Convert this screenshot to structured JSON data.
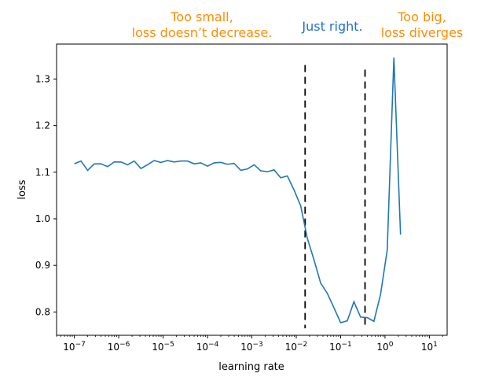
{
  "colors": {
    "series": "#1f77b4",
    "annotation_orange": "#ff8c00",
    "annotation_blue": "#1e6fd9",
    "marker_line": "#000000"
  },
  "annotations": {
    "small_line1": "Too small,",
    "small_line2": "loss doesn’t decrease.",
    "right": "Just right.",
    "big_line1": "Too big,",
    "big_line2": "loss diverges"
  },
  "chart_data": {
    "type": "line",
    "xlabel": "learning rate",
    "ylabel": "loss",
    "xscale": "log",
    "xlim_log10": [
      -7.4,
      1.4
    ],
    "ylim": [
      0.75,
      1.375
    ],
    "x_ticks": [
      {
        "label": "10",
        "exp": "−7",
        "value": -7
      },
      {
        "label": "10",
        "exp": "−6",
        "value": -6
      },
      {
        "label": "10",
        "exp": "−5",
        "value": -5
      },
      {
        "label": "10",
        "exp": "−4",
        "value": -4
      },
      {
        "label": "10",
        "exp": "−3",
        "value": -3
      },
      {
        "label": "10",
        "exp": "−2",
        "value": -2
      },
      {
        "label": "10",
        "exp": "−1",
        "value": -1
      },
      {
        "label": "10",
        "exp": "0",
        "value": 0
      },
      {
        "label": "10",
        "exp": "1",
        "value": 1
      }
    ],
    "y_ticks": [
      "0.8",
      "0.9",
      "1.0",
      "1.1",
      "1.2",
      "1.3"
    ],
    "y_tick_values": [
      0.8,
      0.9,
      1.0,
      1.1,
      1.2,
      1.3
    ],
    "grid": false,
    "series": [
      {
        "log10_x": [
          -7.0,
          -6.85,
          -6.7,
          -6.55,
          -6.4,
          -6.25,
          -6.1,
          -5.95,
          -5.8,
          -5.65,
          -5.5,
          -5.35,
          -5.2,
          -5.05,
          -4.9,
          -4.75,
          -4.6,
          -4.45,
          -4.3,
          -4.15,
          -4.0,
          -3.85,
          -3.7,
          -3.55,
          -3.4,
          -3.25,
          -3.1,
          -2.95,
          -2.8,
          -2.65,
          -2.5,
          -2.35,
          -2.2,
          -2.05,
          -1.9,
          -1.75,
          -1.6,
          -1.45,
          -1.3,
          -1.15,
          -1.0,
          -0.85,
          -0.7,
          -0.55,
          -0.4,
          -0.25,
          -0.1,
          0.05,
          0.2,
          0.35,
          0.5,
          0.65,
          0.8,
          0.95
        ],
        "y": [
          1.118,
          1.124,
          1.104,
          1.118,
          1.118,
          1.112,
          1.122,
          1.122,
          1.116,
          1.124,
          1.108,
          1.116,
          1.125,
          1.121,
          1.125,
          1.122,
          1.124,
          1.124,
          1.118,
          1.12,
          1.113,
          1.12,
          1.121,
          1.117,
          1.119,
          1.104,
          1.107,
          1.116,
          1.103,
          1.101,
          1.105,
          1.088,
          1.092,
          1.062,
          1.028,
          0.958,
          0.912,
          0.862,
          0.84,
          0.809,
          0.777,
          0.781,
          0.822,
          0.789,
          0.788,
          0.78,
          0.838,
          0.933,
          1.346,
          0.966,
          null,
          null,
          null,
          null
        ]
      }
    ],
    "markers": [
      {
        "x_log10": -1.8,
        "y_top": 1.33,
        "y_bottom": 0.765
      },
      {
        "x_log10": -0.45,
        "y_top": 1.32,
        "y_bottom": 0.765
      }
    ]
  }
}
